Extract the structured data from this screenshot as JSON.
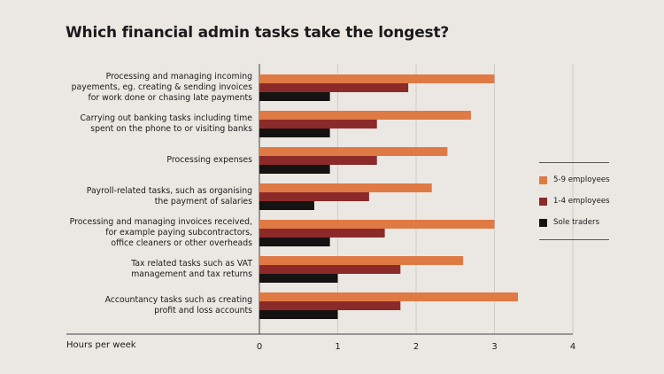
{
  "chart_data": {
    "type": "bar",
    "orientation": "horizontal",
    "title": "Which financial admin tasks take the longest?",
    "xlabel": "Hours per week",
    "xlim": [
      0,
      4
    ],
    "xticks": [
      "0",
      "1",
      "2",
      "3",
      "4"
    ],
    "grid": true,
    "legend_position": "right",
    "categories": [
      "Processing and managing incoming payements, eg. creating & sending invoices for work done or chasing late payments",
      "Carrying out banking tasks including time spent on the phone to or visiting banks",
      "Processing expenses",
      "Payroll-related tasks, such as organising the payment of salaries",
      "Processing and managing invoices received, for example paying subcontractors, office cleaners or other overheads",
      "Tax related tasks such as VAT management and tax returns",
      "Accountancy tasks such as creating profit and loss accounts"
    ],
    "series": [
      {
        "name": "5-9 employees",
        "color": "#e07a44",
        "values": [
          3.0,
          2.7,
          2.4,
          2.2,
          3.0,
          2.6,
          3.3
        ]
      },
      {
        "name": "1-4 employees",
        "color": "#8c2a2a",
        "values": [
          1.9,
          1.5,
          1.5,
          1.4,
          1.6,
          1.8,
          1.8
        ]
      },
      {
        "name": "Sole traders",
        "color": "#151311",
        "values": [
          0.9,
          0.9,
          0.9,
          0.7,
          0.9,
          1.0,
          1.0
        ]
      }
    ]
  }
}
